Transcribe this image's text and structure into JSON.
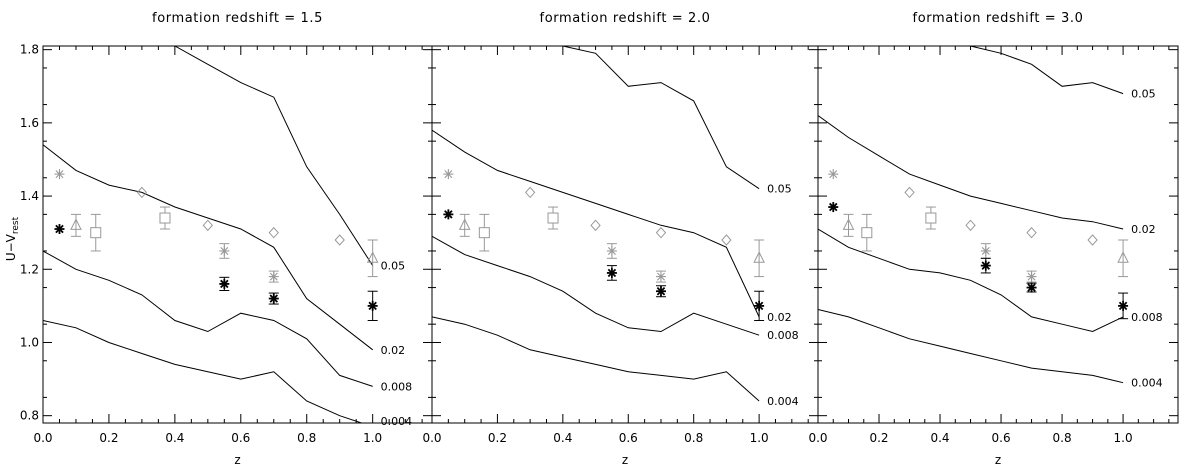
{
  "chart_data": {
    "type": "line",
    "xlabel": "z",
    "ylabel_main": "U−V",
    "ylabel_sub": "rest",
    "xlim": [
      0.0,
      1.18
    ],
    "ylim": [
      0.78,
      1.81
    ],
    "xticks": [
      0.0,
      0.2,
      0.4,
      0.6,
      0.8,
      1.0
    ],
    "xtick_labels": [
      "0.0",
      "0.2",
      "0.4",
      "0.6",
      "0.8",
      "1.0"
    ],
    "yticks": [
      0.8,
      1.0,
      1.2,
      1.4,
      1.6,
      1.8
    ],
    "ytick_labels": [
      "0.8",
      "1.0",
      "1.2",
      "1.4",
      "1.6",
      "1.8"
    ],
    "colors": {
      "line": "#000000",
      "gray": "#999999",
      "black": "#000000"
    },
    "panels": [
      {
        "title": "formation redshift = 1.5",
        "curves": [
          {
            "label": "0.05",
            "x": [
              0.0,
              0.1,
              0.2,
              0.3,
              0.4,
              0.5,
              0.6,
              0.7,
              0.8,
              0.9,
              1.0
            ],
            "y": [
              1.89,
              1.84,
              1.82,
              1.81,
              1.81,
              1.76,
              1.71,
              1.67,
              1.48,
              1.35,
              1.21
            ]
          },
          {
            "label": "0.02",
            "x": [
              0.0,
              0.1,
              0.2,
              0.3,
              0.4,
              0.5,
              0.6,
              0.7,
              0.8,
              0.9,
              1.0
            ],
            "y": [
              1.54,
              1.47,
              1.43,
              1.41,
              1.37,
              1.34,
              1.31,
              1.26,
              1.12,
              1.05,
              0.98
            ]
          },
          {
            "label": "0.008",
            "x": [
              0.0,
              0.1,
              0.2,
              0.3,
              0.4,
              0.5,
              0.6,
              0.7,
              0.8,
              0.9,
              1.0
            ],
            "y": [
              1.25,
              1.2,
              1.17,
              1.13,
              1.06,
              1.03,
              1.08,
              1.06,
              1.01,
              0.91,
              0.88
            ]
          },
          {
            "label": "0.004",
            "x": [
              0.0,
              0.1,
              0.2,
              0.3,
              0.4,
              0.5,
              0.6,
              0.7,
              0.8,
              0.9,
              1.0
            ],
            "y": [
              1.06,
              1.04,
              1.0,
              0.97,
              0.94,
              0.92,
              0.9,
              0.92,
              0.84,
              0.8,
              0.77
            ]
          }
        ],
        "black_points": [
          {
            "x": 0.05,
            "y": 1.31
          },
          {
            "x": 0.55,
            "y": 1.16,
            "err": 0.018
          },
          {
            "x": 0.7,
            "y": 1.12,
            "err": 0.015
          },
          {
            "x": 1.0,
            "y": 1.1,
            "err": 0.04
          }
        ]
      },
      {
        "title": "formation redshift = 2.0",
        "curves": [
          {
            "label": "0.05",
            "x": [
              0.0,
              0.1,
              0.2,
              0.3,
              0.4,
              0.5,
              0.6,
              0.7,
              0.8,
              0.9,
              1.0
            ],
            "y": [
              1.88,
              1.84,
              1.83,
              1.82,
              1.81,
              1.79,
              1.7,
              1.71,
              1.66,
              1.48,
              1.42
            ]
          },
          {
            "label": "0.02",
            "x": [
              0.0,
              0.1,
              0.2,
              0.3,
              0.4,
              0.5,
              0.6,
              0.7,
              0.8,
              0.9,
              1.0
            ],
            "y": [
              1.58,
              1.52,
              1.47,
              1.44,
              1.41,
              1.38,
              1.35,
              1.32,
              1.3,
              1.26,
              1.07
            ]
          },
          {
            "label": "0.008",
            "x": [
              0.0,
              0.1,
              0.2,
              0.3,
              0.4,
              0.5,
              0.6,
              0.7,
              0.8,
              0.9,
              1.0
            ],
            "y": [
              1.29,
              1.24,
              1.21,
              1.18,
              1.14,
              1.08,
              1.04,
              1.03,
              1.08,
              1.05,
              1.02
            ]
          },
          {
            "label": "0.004",
            "x": [
              0.0,
              0.1,
              0.2,
              0.3,
              0.4,
              0.5,
              0.6,
              0.7,
              0.8,
              0.9,
              1.0
            ],
            "y": [
              1.07,
              1.05,
              1.02,
              0.98,
              0.96,
              0.94,
              0.92,
              0.91,
              0.9,
              0.92,
              0.84
            ]
          }
        ],
        "black_points": [
          {
            "x": 0.05,
            "y": 1.35
          },
          {
            "x": 0.55,
            "y": 1.19,
            "err": 0.02
          },
          {
            "x": 0.7,
            "y": 1.14,
            "err": 0.015
          },
          {
            "x": 1.0,
            "y": 1.1,
            "err": 0.04
          }
        ]
      },
      {
        "title": "formation redshift = 3.0",
        "curves": [
          {
            "label": "0.05",
            "x": [
              0.0,
              0.1,
              0.2,
              0.3,
              0.4,
              0.5,
              0.6,
              0.7,
              0.8,
              0.9,
              1.0
            ],
            "y": [
              1.92,
              1.89,
              1.87,
              1.86,
              1.84,
              1.81,
              1.79,
              1.76,
              1.7,
              1.71,
              1.68
            ]
          },
          {
            "label": "0.02",
            "x": [
              0.0,
              0.1,
              0.2,
              0.3,
              0.4,
              0.5,
              0.6,
              0.7,
              0.8,
              0.9,
              1.0
            ],
            "y": [
              1.62,
              1.56,
              1.51,
              1.46,
              1.43,
              1.4,
              1.38,
              1.36,
              1.34,
              1.33,
              1.31
            ]
          },
          {
            "label": "0.008",
            "x": [
              0.0,
              0.1,
              0.2,
              0.3,
              0.4,
              0.5,
              0.6,
              0.7,
              0.8,
              0.9,
              1.0
            ],
            "y": [
              1.31,
              1.26,
              1.23,
              1.2,
              1.19,
              1.17,
              1.13,
              1.07,
              1.05,
              1.03,
              1.07
            ]
          },
          {
            "label": "0.004",
            "x": [
              0.0,
              0.1,
              0.2,
              0.3,
              0.4,
              0.5,
              0.6,
              0.7,
              0.8,
              0.9,
              1.0
            ],
            "y": [
              1.09,
              1.07,
              1.04,
              1.01,
              0.99,
              0.97,
              0.95,
              0.93,
              0.92,
              0.91,
              0.89
            ]
          }
        ],
        "black_points": [
          {
            "x": 0.05,
            "y": 1.37
          },
          {
            "x": 0.55,
            "y": 1.21,
            "err": 0.02
          },
          {
            "x": 0.7,
            "y": 1.15,
            "err": 0.012
          },
          {
            "x": 1.0,
            "y": 1.1,
            "err": 0.035
          }
        ]
      }
    ],
    "gray_points": {
      "asterisk": [
        {
          "x": 0.05,
          "y": 1.46
        },
        {
          "x": 0.55,
          "y": 1.25,
          "err": 0.02
        },
        {
          "x": 0.7,
          "y": 1.18,
          "err": 0.015
        }
      ],
      "triangle": [
        {
          "x": 0.1,
          "y": 1.32,
          "err": 0.03
        },
        {
          "x": 1.0,
          "y": 1.23,
          "err": 0.05
        }
      ],
      "square": [
        {
          "x": 0.16,
          "y": 1.3,
          "err": 0.05
        },
        {
          "x": 0.37,
          "y": 1.34,
          "err": 0.03
        }
      ],
      "diamond": [
        {
          "x": 0.3,
          "y": 1.41
        },
        {
          "x": 0.5,
          "y": 1.32
        },
        {
          "x": 0.7,
          "y": 1.3
        },
        {
          "x": 0.9,
          "y": 1.28
        }
      ]
    }
  }
}
